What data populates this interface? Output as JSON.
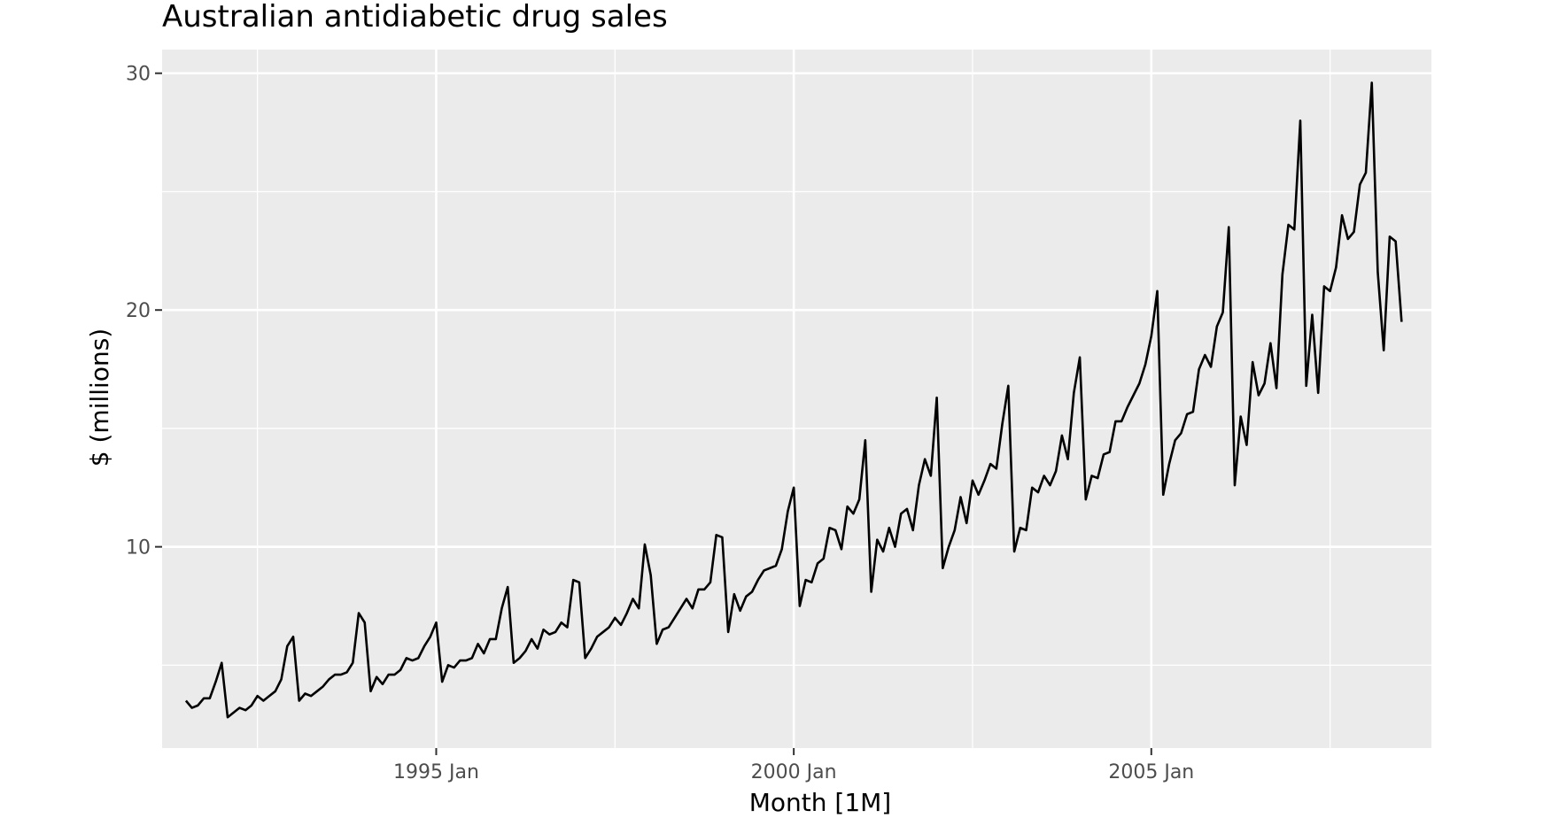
{
  "chart_data": {
    "type": "line",
    "title": "Australian antidiabetic drug sales",
    "xlabel": "Month [1M]",
    "ylabel": "$ (millions)",
    "x_ticks": [
      "1995 Jan",
      "2000 Jan",
      "2005 Jan"
    ],
    "y_ticks": [
      10,
      20,
      30
    ],
    "ylim": [
      1.5,
      31
    ],
    "xlim": [
      "1991-03",
      "2008-12"
    ],
    "grid": true,
    "background": "#ebebeb",
    "line_color": "#000000",
    "series": [
      {
        "start": "1991-07",
        "frequency": "monthly",
        "values": [
          3.5,
          3.2,
          3.3,
          3.6,
          3.6,
          4.3,
          5.1,
          2.8,
          3.0,
          3.2,
          3.1,
          3.3,
          3.7,
          3.5,
          3.7,
          3.9,
          4.4,
          5.8,
          6.2,
          3.5,
          3.8,
          3.7,
          3.9,
          4.1,
          4.4,
          4.6,
          4.6,
          4.7,
          5.1,
          7.2,
          6.8,
          3.9,
          4.5,
          4.2,
          4.6,
          4.6,
          4.8,
          5.3,
          5.2,
          5.3,
          5.8,
          6.2,
          6.8,
          4.3,
          5.0,
          4.9,
          5.2,
          5.2,
          5.3,
          5.9,
          5.5,
          6.1,
          6.1,
          7.4,
          8.3,
          5.1,
          5.3,
          5.6,
          6.1,
          5.7,
          6.5,
          6.3,
          6.4,
          6.8,
          6.6,
          8.6,
          8.5,
          5.3,
          5.7,
          6.2,
          6.4,
          6.6,
          7.0,
          6.7,
          7.2,
          7.8,
          7.4,
          10.1,
          8.8,
          5.9,
          6.5,
          6.6,
          7.0,
          7.4,
          7.8,
          7.4,
          8.2,
          8.2,
          8.5,
          10.5,
          10.4,
          6.4,
          8.0,
          7.3,
          7.9,
          8.1,
          8.6,
          9.0,
          9.1,
          9.2,
          9.9,
          11.5,
          12.5,
          7.5,
          8.6,
          8.5,
          9.3,
          9.5,
          10.8,
          10.7,
          9.9,
          11.7,
          11.4,
          12.0,
          14.5,
          8.1,
          10.3,
          9.8,
          10.8,
          10.0,
          11.4,
          11.6,
          10.7,
          12.6,
          13.7,
          13.0,
          16.3,
          9.1,
          10.0,
          10.7,
          12.1,
          11.0,
          12.8,
          12.2,
          12.8,
          13.5,
          13.3,
          15.2,
          16.8,
          9.8,
          10.8,
          10.7,
          12.5,
          12.3,
          13.0,
          12.6,
          13.2,
          14.7,
          13.7,
          16.5,
          18.0,
          12.0,
          13.0,
          12.9,
          13.9,
          14.0,
          15.3,
          15.3,
          15.9,
          16.4,
          16.9,
          17.7,
          18.9,
          20.8,
          12.2,
          13.5,
          14.5,
          14.8,
          15.6,
          15.7,
          17.5,
          18.1,
          17.6,
          19.3,
          19.9,
          23.5,
          12.6,
          15.5,
          14.3,
          17.8,
          16.4,
          16.9,
          18.6,
          16.7,
          21.5,
          23.6,
          23.4,
          28.0,
          16.8,
          19.8,
          16.5,
          21.0,
          20.8,
          21.8,
          24.0,
          23.0,
          23.3,
          25.3,
          25.8,
          29.6,
          21.6,
          18.3,
          23.1,
          22.9,
          19.5
        ]
      }
    ]
  }
}
